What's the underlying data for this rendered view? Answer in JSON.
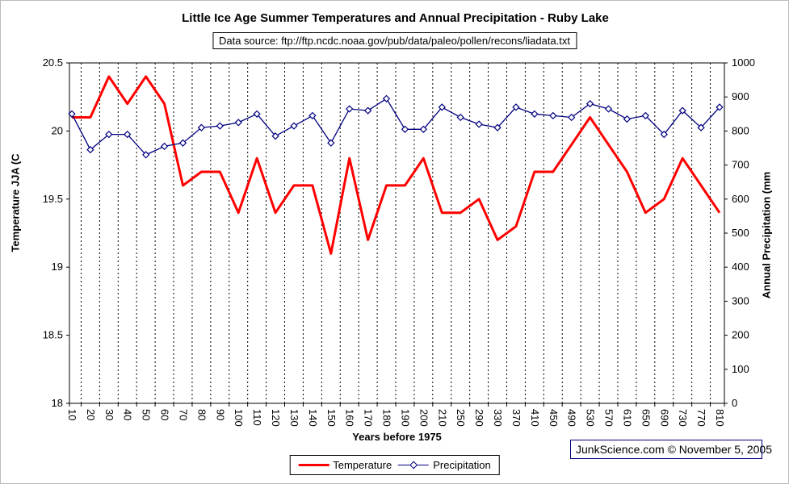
{
  "attribution": "JunkScience.com ©  November 5, 2005",
  "colors": {
    "temperature": "#ff0000",
    "precipitation": "#000080",
    "grid": "#000000",
    "axis": "#000000",
    "background": "#ffffff"
  },
  "chart_data": {
    "type": "line",
    "title": "Little Ice Age Summer Temperatures and Annual Precipitation - Ruby Lake",
    "subtitle": "Data source: ftp://ftp.ncdc.noaa.gov/pub/data/paleo/pollen/recons/liadata.txt",
    "xlabel": "Years before 1975",
    "ylabel_left": "Temperature JJA (C",
    "ylabel_right": "Annual Precipitation (mm",
    "y_left": {
      "min": 18,
      "max": 20.5,
      "step": 0.5
    },
    "y_right": {
      "min": 0,
      "max": 1000,
      "step": 100
    },
    "grid": "vertical-dashed",
    "legend_position": "bottom",
    "categories": [
      10,
      20,
      30,
      40,
      50,
      60,
      70,
      80,
      90,
      100,
      110,
      120,
      130,
      140,
      150,
      160,
      170,
      180,
      190,
      200,
      210,
      250,
      290,
      330,
      370,
      410,
      450,
      490,
      530,
      570,
      610,
      650,
      690,
      730,
      770,
      810
    ],
    "series": [
      {
        "name": "Temperature",
        "axis": "left",
        "color": "#ff0000",
        "style": "thick-line",
        "values": [
          20.1,
          20.1,
          20.4,
          20.2,
          20.4,
          20.2,
          19.6,
          19.7,
          19.7,
          19.4,
          19.8,
          19.4,
          19.6,
          19.6,
          19.1,
          19.8,
          19.2,
          19.6,
          19.6,
          19.8,
          19.4,
          19.4,
          19.5,
          19.2,
          19.3,
          19.7,
          19.7,
          19.9,
          20.1,
          19.9,
          19.7,
          19.4,
          19.5,
          19.8,
          19.6,
          19.4
        ]
      },
      {
        "name": "Precipitation",
        "axis": "right",
        "color": "#000080",
        "style": "thin-line-diamond-markers",
        "values": [
          850,
          745,
          790,
          790,
          730,
          755,
          765,
          810,
          815,
          825,
          850,
          785,
          815,
          845,
          765,
          865,
          860,
          895,
          805,
          805,
          870,
          840,
          820,
          810,
          870,
          850,
          845,
          840,
          880,
          865,
          835,
          845,
          790,
          860,
          810,
          870
        ]
      }
    ]
  }
}
